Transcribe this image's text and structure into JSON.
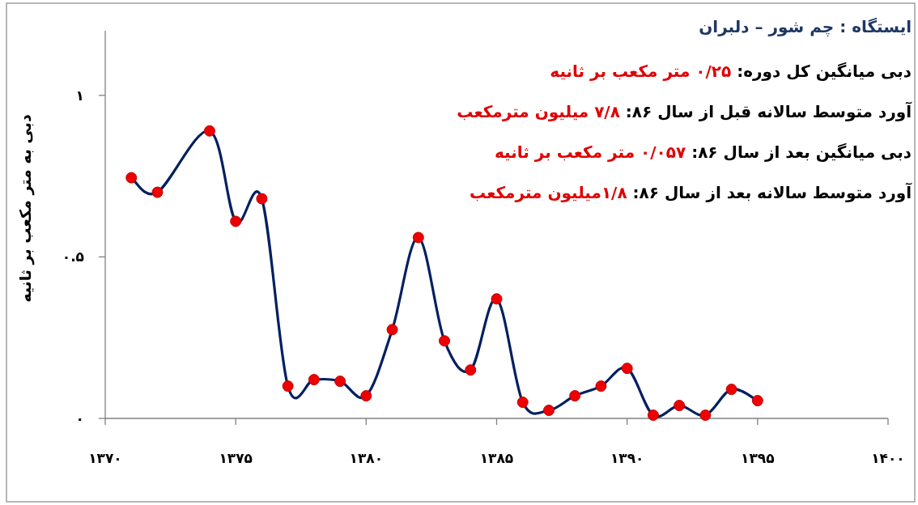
{
  "chart_data": {
    "type": "line",
    "title": "ایستگاه : چم شور – دلبران",
    "ylabel": "دبی به متر مکعب بر ثانیه",
    "annotations": [
      "دبی میانگین کل دوره:",
      "۰/۲۵ متر مکعب بر ثانیه",
      "آورد متوسط سالانه قبل از سال ۸۶:",
      "۷/۸ میلیون مترمکعب",
      "دبی میانگین بعد از سال ۸۶:",
      "۰/۰۵۷ متر مکعب بر ثانیه",
      "آورد متوسط سالانه بعد از سال ۸۶:",
      "۱/۸میلیون مترمکعب"
    ],
    "x": [
      1371,
      1372,
      1374,
      1375,
      1376,
      1377,
      1378,
      1379,
      1380,
      1381,
      1382,
      1383,
      1384,
      1385,
      1386,
      1387,
      1388,
      1389,
      1390,
      1391,
      1392,
      1393,
      1394,
      1395
    ],
    "series": [
      {
        "color": "#002060",
        "values": [
          0.745,
          0.7,
          0.89,
          0.61,
          0.68,
          0.1,
          0.12,
          0.115,
          0.07,
          0.275,
          0.56,
          0.24,
          0.15,
          0.37,
          0.05,
          0.025,
          0.07,
          0.1,
          0.155,
          0.01,
          0.04,
          0.01,
          0.09,
          0.055
        ]
      }
    ],
    "marker": "circle",
    "line_style": "solid",
    "grid": false,
    "xlim": [
      1370,
      1400
    ],
    "ylim": [
      0,
      1.2
    ],
    "xticks": [
      {
        "value": 1370,
        "label": "۱۳۷۰"
      },
      {
        "value": 1375,
        "label": "۱۳۷۵"
      },
      {
        "value": 1380,
        "label": "۱۳۸۰"
      },
      {
        "value": 1385,
        "label": "۱۳۸۵"
      },
      {
        "value": 1390,
        "label": "۱۳۹۰"
      },
      {
        "value": 1395,
        "label": "۱۳۹۵"
      },
      {
        "value": 1400,
        "label": "۱۴۰۰"
      }
    ],
    "yticks": [
      {
        "value": 0,
        "label": "۰"
      },
      {
        "value": 0.5,
        "label": "۰.۵"
      },
      {
        "value": 1,
        "label": "۱"
      }
    ]
  }
}
